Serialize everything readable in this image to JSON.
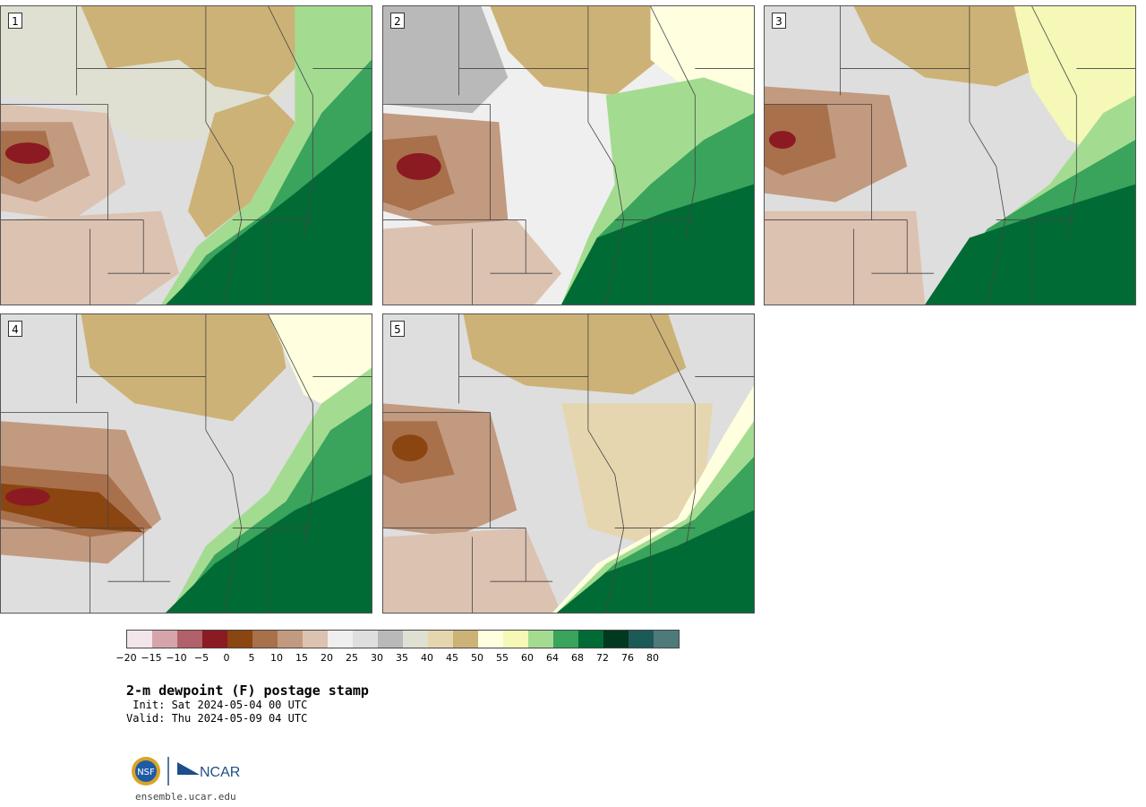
{
  "panels": [
    {
      "label": "1",
      "variant": 1
    },
    {
      "label": "2",
      "variant": 2
    },
    {
      "label": "3",
      "variant": 3
    },
    {
      "label": "4",
      "variant": 4
    },
    {
      "label": "5",
      "variant": 5
    }
  ],
  "colorbar": {
    "colors": [
      "#f3e6e9",
      "#d6a4ab",
      "#b2606a",
      "#8c1a22",
      "#8b4510",
      "#a8704b",
      "#c29a80",
      "#dcc2b1",
      "#efefef",
      "#dedede",
      "#b9b9b9",
      "#dfdfd2",
      "#e6d6af",
      "#cdb277",
      "#ffffe0",
      "#f5f8b6",
      "#a3dc91",
      "#3aa35c",
      "#006b35",
      "#00391f",
      "#1b5a57",
      "#4f7a7c"
    ],
    "ticks": [
      "−20",
      "−15",
      "−10",
      "−5",
      "0",
      "5",
      "10",
      "15",
      "20",
      "25",
      "30",
      "35",
      "40",
      "45",
      "50",
      "55",
      "60",
      "64",
      "68",
      "72",
      "76",
      "80"
    ]
  },
  "title": "2-m dewpoint (F) postage stamp",
  "init": " Init: Sat 2024-05-04 00 UTC",
  "valid": "Valid: Thu 2024-05-09 04 UTC",
  "logos": {
    "nsf": "NSF",
    "ncar": "NCAR"
  },
  "url": "ensemble.ucar.edu"
}
